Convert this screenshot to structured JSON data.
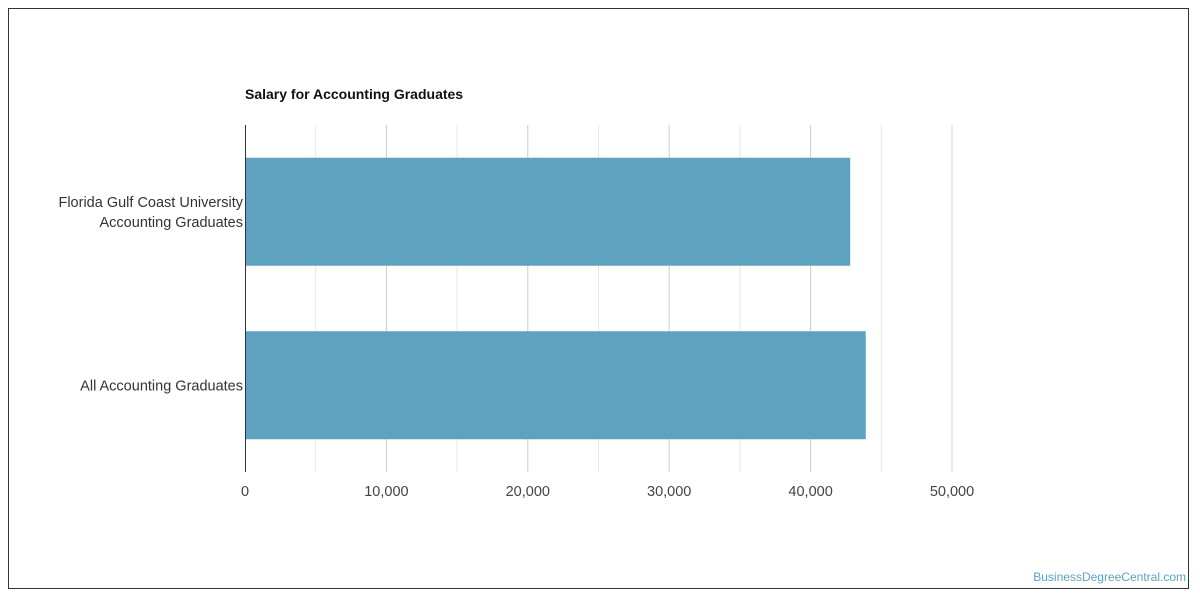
{
  "chart_data": {
    "type": "bar",
    "orientation": "horizontal",
    "title": "Salary for Accounting Graduates",
    "categories": [
      [
        "Florida Gulf Coast University",
        "Accounting Graduates"
      ],
      [
        "All Accounting Graduates"
      ]
    ],
    "values": [
      42800,
      43900
    ],
    "xlim": [
      0,
      50000
    ],
    "xticks": [
      0,
      10000,
      20000,
      30000,
      40000,
      50000
    ],
    "xtick_labels": [
      "0",
      "10,000",
      "20,000",
      "30,000",
      "40,000",
      "50,000"
    ],
    "minor_grid_step": 5000,
    "grid": true,
    "bar_color": "#5ea2c0",
    "xlabel": "",
    "ylabel": ""
  },
  "credit": "BusinessDegreeCentral.com"
}
